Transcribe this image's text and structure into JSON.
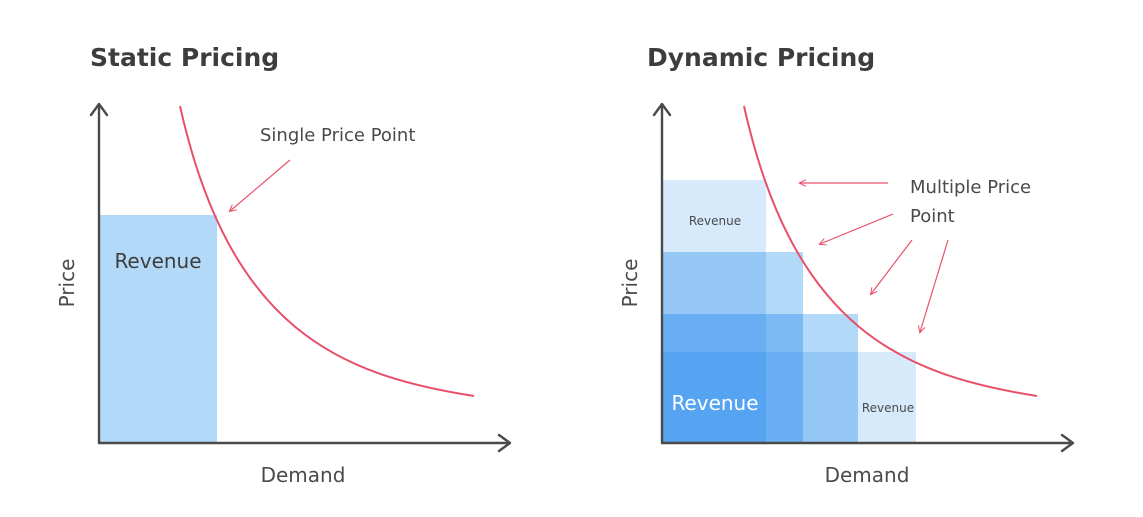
{
  "static": {
    "title": "Static Pricing",
    "y_label": "Price",
    "x_label": "Demand",
    "revenue_label": "Revenue",
    "annotation": "Single Price Point"
  },
  "dynamic": {
    "title": "Dynamic Pricing",
    "y_label": "Price",
    "x_label": "Demand",
    "revenue_main": "Revenue",
    "revenue_top": "Revenue",
    "revenue_right": "Revenue",
    "annotation_line1": "Multiple Price",
    "annotation_line2": "Point"
  },
  "colors": {
    "curve": "#e8506a",
    "axis": "#4a4a4a",
    "light_blue": "#b3d9f8",
    "lightest_blue": "#d6eafc",
    "mid_blue": "#96c8f6",
    "deep_blue": "#5aa7f2",
    "mid_deep_blue": "#72b4f4"
  }
}
